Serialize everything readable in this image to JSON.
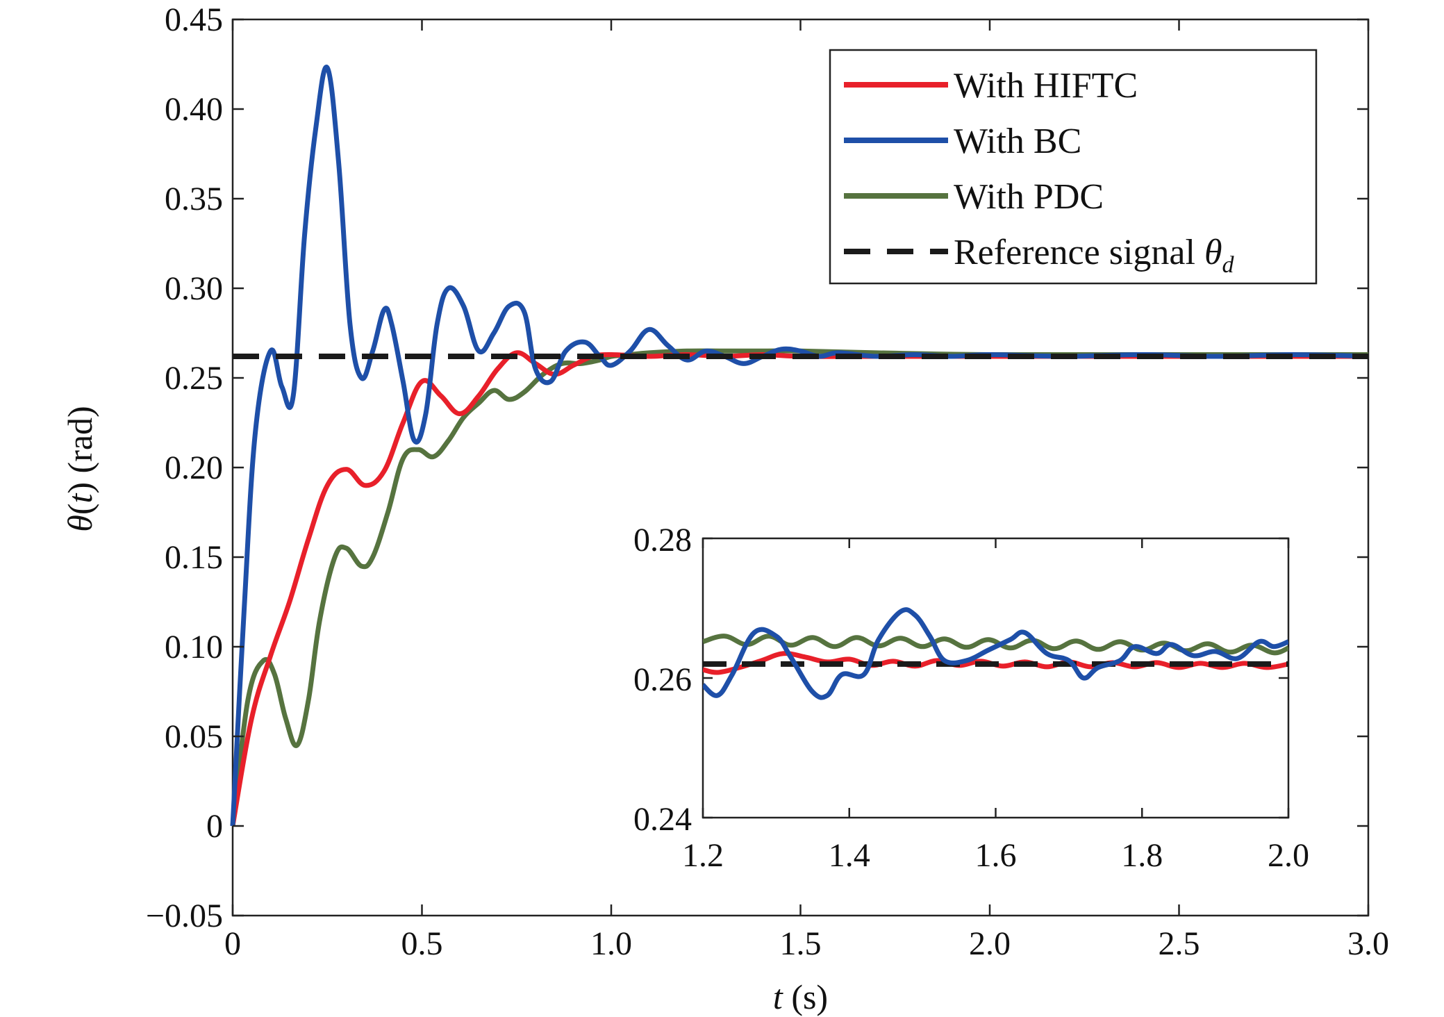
{
  "chart_data": [
    {
      "type": "line",
      "title": "",
      "xlabel": {
        "var": "t",
        "unit": " (s)"
      },
      "ylabel": {
        "var1": "θ(",
        "var2": "t",
        "var3": ")",
        "unit": " (rad)"
      },
      "xlim": [
        0,
        3.0
      ],
      "ylim": [
        -0.05,
        0.45
      ],
      "xticks": [
        0,
        0.5,
        1.0,
        1.5,
        2.0,
        2.5,
        3.0
      ],
      "xtick_labels": [
        "0",
        "0.5",
        "1.0",
        "1.5",
        "2.0",
        "2.5",
        "3.0"
      ],
      "yticks": [
        -0.05,
        0,
        0.05,
        0.1,
        0.15,
        0.2,
        0.25,
        0.3,
        0.35,
        0.4,
        0.45
      ],
      "ytick_labels": [
        "−0.05",
        "0",
        "0.05",
        "0.10",
        "0.15",
        "0.20",
        "0.25",
        "0.30",
        "0.35",
        "0.40",
        "0.45"
      ],
      "grid": false,
      "legend_position": "top-right",
      "series": [
        {
          "name": "With HIFTC",
          "color": "#e8202a",
          "style": "solid",
          "x": [
            0,
            0.05,
            0.1,
            0.15,
            0.2,
            0.25,
            0.3,
            0.35,
            0.4,
            0.45,
            0.5,
            0.55,
            0.6,
            0.65,
            0.7,
            0.75,
            0.8,
            0.85,
            0.9,
            0.95,
            1.0,
            1.1,
            1.2,
            1.3,
            1.4,
            1.5,
            1.7,
            2.0,
            2.5,
            3.0
          ],
          "y": [
            0,
            0.06,
            0.095,
            0.125,
            0.16,
            0.19,
            0.199,
            0.19,
            0.198,
            0.225,
            0.248,
            0.24,
            0.23,
            0.24,
            0.255,
            0.264,
            0.258,
            0.252,
            0.257,
            0.262,
            0.263,
            0.262,
            0.263,
            0.262,
            0.263,
            0.262,
            0.262,
            0.262,
            0.262,
            0.262
          ]
        },
        {
          "name": "With BC",
          "color": "#1e4fa8",
          "style": "solid",
          "x": [
            0,
            0.03,
            0.06,
            0.1,
            0.13,
            0.16,
            0.19,
            0.22,
            0.25,
            0.28,
            0.31,
            0.34,
            0.37,
            0.4,
            0.42,
            0.45,
            0.48,
            0.51,
            0.54,
            0.57,
            0.61,
            0.65,
            0.69,
            0.73,
            0.77,
            0.8,
            0.84,
            0.88,
            0.93,
            0.97,
            1.0,
            1.05,
            1.1,
            1.15,
            1.2,
            1.25,
            1.3,
            1.35,
            1.4,
            1.45,
            1.5,
            1.55,
            1.6,
            1.7,
            1.8,
            1.9,
            2.0,
            2.2,
            2.4,
            2.6,
            2.8,
            3.0
          ],
          "y": [
            0,
            0.12,
            0.22,
            0.265,
            0.245,
            0.24,
            0.33,
            0.39,
            0.423,
            0.37,
            0.28,
            0.25,
            0.265,
            0.288,
            0.28,
            0.248,
            0.215,
            0.23,
            0.28,
            0.3,
            0.29,
            0.265,
            0.275,
            0.29,
            0.287,
            0.255,
            0.248,
            0.265,
            0.27,
            0.262,
            0.257,
            0.265,
            0.277,
            0.268,
            0.26,
            0.265,
            0.262,
            0.258,
            0.262,
            0.266,
            0.265,
            0.262,
            0.264,
            0.262,
            0.263,
            0.262,
            0.263,
            0.262,
            0.263,
            0.262,
            0.263,
            0.262
          ]
        },
        {
          "name": "With PDC",
          "color": "#56733f",
          "style": "solid",
          "x": [
            0,
            0.04,
            0.08,
            0.11,
            0.14,
            0.17,
            0.2,
            0.23,
            0.27,
            0.3,
            0.34,
            0.37,
            0.41,
            0.45,
            0.49,
            0.53,
            0.57,
            0.61,
            0.65,
            0.69,
            0.73,
            0.77,
            0.82,
            0.87,
            0.92,
            0.97,
            1.0,
            1.05,
            1.1,
            1.2,
            1.3,
            1.4,
            1.5,
            1.7,
            2.0,
            2.5,
            3.0
          ],
          "y": [
            0,
            0.07,
            0.092,
            0.085,
            0.06,
            0.045,
            0.07,
            0.115,
            0.15,
            0.155,
            0.145,
            0.15,
            0.175,
            0.205,
            0.21,
            0.206,
            0.215,
            0.228,
            0.236,
            0.243,
            0.238,
            0.242,
            0.252,
            0.258,
            0.258,
            0.26,
            0.262,
            0.263,
            0.264,
            0.265,
            0.265,
            0.265,
            0.265,
            0.264,
            0.263,
            0.263,
            0.263
          ]
        },
        {
          "name": "Reference signal θd",
          "color": "#1a1a1a",
          "style": "dashed",
          "x": [
            0,
            3.0
          ],
          "y": [
            0.262,
            0.262
          ]
        }
      ],
      "legend": {
        "entries": [
          {
            "text": "With HIFTC",
            "color": "#e8202a",
            "style": "solid"
          },
          {
            "text": "With BC",
            "color": "#1e4fa8",
            "style": "solid"
          },
          {
            "text": "With PDC",
            "color": "#56733f",
            "style": "solid"
          },
          {
            "text": "Reference signal ",
            "sym": "θ",
            "sub": "d",
            "color": "#1a1a1a",
            "style": "dashed"
          }
        ]
      }
    },
    {
      "type": "line",
      "title": "",
      "inset": true,
      "xlim": [
        1.2,
        2.0
      ],
      "ylim": [
        0.24,
        0.28
      ],
      "xticks": [
        1.2,
        1.4,
        1.6,
        1.8,
        2.0
      ],
      "xtick_labels": [
        "1.2",
        "1.4",
        "1.6",
        "1.8",
        "2.0"
      ],
      "yticks": [
        0.24,
        0.26,
        0.28
      ],
      "ytick_labels": [
        "0.24",
        "0.26",
        "0.28"
      ],
      "series": [
        {
          "name": "With HIFTC",
          "color": "#e8202a",
          "x": [
            1.2,
            1.22,
            1.25,
            1.28,
            1.31,
            1.34,
            1.37,
            1.4,
            1.43,
            1.46,
            1.49,
            1.52,
            1.55,
            1.58,
            1.61,
            1.64,
            1.67,
            1.7,
            1.73,
            1.76,
            1.79,
            1.82,
            1.85,
            1.88,
            1.91,
            1.94,
            1.97,
            2.0
          ],
          "y": [
            0.2612,
            0.2608,
            0.2615,
            0.2625,
            0.2635,
            0.263,
            0.2623,
            0.2627,
            0.2618,
            0.2624,
            0.2617,
            0.2625,
            0.2618,
            0.2624,
            0.2617,
            0.2623,
            0.2616,
            0.2623,
            0.2616,
            0.2622,
            0.2616,
            0.2622,
            0.2615,
            0.2621,
            0.2615,
            0.2621,
            0.2615,
            0.262
          ]
        },
        {
          "name": "With BC",
          "color": "#1e4fa8",
          "x": [
            1.2,
            1.22,
            1.24,
            1.27,
            1.3,
            1.32,
            1.35,
            1.37,
            1.39,
            1.42,
            1.44,
            1.47,
            1.49,
            1.51,
            1.53,
            1.56,
            1.59,
            1.62,
            1.64,
            1.67,
            1.7,
            1.72,
            1.74,
            1.77,
            1.79,
            1.82,
            1.84,
            1.87,
            1.9,
            1.93,
            1.96,
            1.98,
            2.0
          ],
          "y": [
            0.259,
            0.2575,
            0.2605,
            0.2665,
            0.266,
            0.263,
            0.258,
            0.2575,
            0.2605,
            0.2605,
            0.2655,
            0.2695,
            0.269,
            0.266,
            0.2625,
            0.2625,
            0.264,
            0.2655,
            0.2665,
            0.2635,
            0.2625,
            0.26,
            0.2615,
            0.2625,
            0.2645,
            0.2635,
            0.2648,
            0.2632,
            0.2638,
            0.2628,
            0.2652,
            0.2645,
            0.2652
          ]
        },
        {
          "name": "With PDC",
          "color": "#56733f",
          "x": [
            1.2,
            1.23,
            1.26,
            1.29,
            1.32,
            1.35,
            1.38,
            1.41,
            1.44,
            1.47,
            1.5,
            1.53,
            1.56,
            1.59,
            1.62,
            1.65,
            1.68,
            1.71,
            1.74,
            1.77,
            1.8,
            1.83,
            1.86,
            1.89,
            1.92,
            1.95,
            1.98,
            2.0
          ],
          "y": [
            0.2652,
            0.266,
            0.2648,
            0.266,
            0.2647,
            0.2658,
            0.2645,
            0.2658,
            0.2646,
            0.2657,
            0.2645,
            0.2656,
            0.2644,
            0.2655,
            0.2643,
            0.2654,
            0.2642,
            0.2653,
            0.2641,
            0.2652,
            0.264,
            0.265,
            0.2639,
            0.2649,
            0.2637,
            0.2647,
            0.2636,
            0.2643
          ]
        },
        {
          "name": "Reference signal θd",
          "color": "#1a1a1a",
          "style": "dashed",
          "x": [
            1.2,
            2.0
          ],
          "y": [
            0.262,
            0.262
          ]
        }
      ]
    }
  ]
}
